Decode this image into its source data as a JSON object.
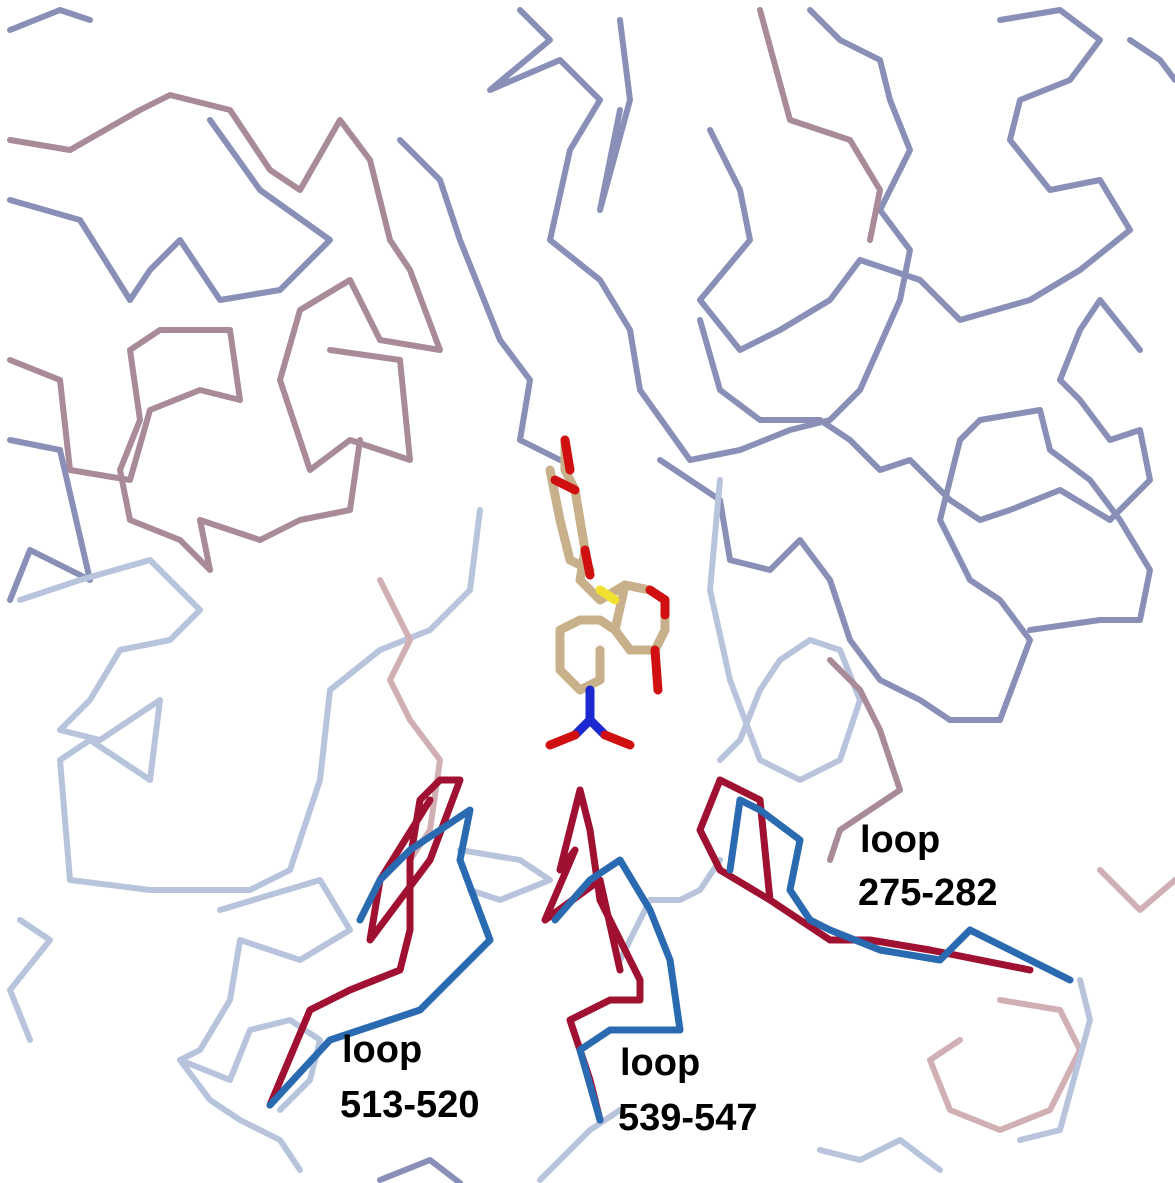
{
  "labels": [
    {
      "line1": "loop",
      "line2": "275-282"
    },
    {
      "line1": "loop",
      "line2": "513-520"
    },
    {
      "line1": "loop",
      "line2": "539-547"
    }
  ]
}
